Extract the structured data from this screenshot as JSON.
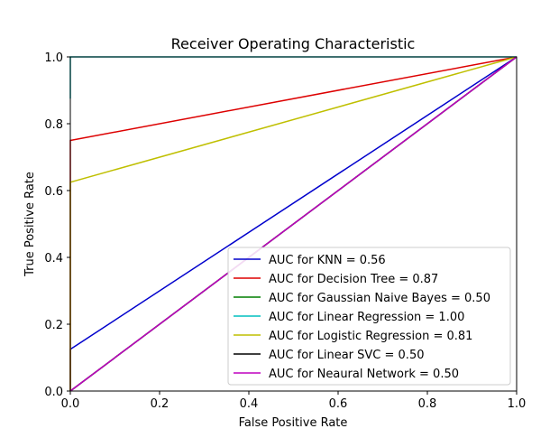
{
  "chart_data": {
    "type": "line",
    "title": "Receiver Operating Characteristic",
    "xlabel": "False Positive Rate",
    "ylabel": "True Positive Rate",
    "xlim": [
      0,
      1
    ],
    "ylim": [
      0,
      1
    ],
    "xticks": [
      "0.0",
      "0.2",
      "0.4",
      "0.6",
      "0.8",
      "1.0"
    ],
    "yticks": [
      "0.0",
      "0.2",
      "0.4",
      "0.6",
      "0.8",
      "1.0"
    ],
    "grid": false,
    "legend_position": "lower-right",
    "series": [
      {
        "name": "AUC for KNN = 0.56",
        "color": "#0000cc",
        "points": [
          [
            0,
            0
          ],
          [
            0,
            0.125
          ],
          [
            1,
            1
          ]
        ]
      },
      {
        "name": "AUC for Decision Tree = 0.87",
        "color": "#dd0000",
        "points": [
          [
            0,
            0
          ],
          [
            0,
            0.75
          ],
          [
            1,
            1
          ]
        ]
      },
      {
        "name": "AUC for Gaussian Naive Bayes = 0.50",
        "color": "#007f00",
        "points": [
          [
            0,
            0
          ],
          [
            1,
            1
          ]
        ]
      },
      {
        "name": "AUC for Linear Regression = 1.00",
        "color": "#00bfbf",
        "points": [
          [
            0,
            0.875
          ],
          [
            0,
            1
          ],
          [
            1,
            1
          ]
        ]
      },
      {
        "name": "AUC for Logistic Regression = 0.81",
        "color": "#bfbf00",
        "points": [
          [
            0,
            0
          ],
          [
            0,
            0.625
          ],
          [
            1,
            1
          ]
        ]
      },
      {
        "name": "AUC for Linear SVC = 0.50",
        "color": "#000000",
        "points": [
          [
            0,
            0
          ],
          [
            1,
            1
          ]
        ]
      },
      {
        "name": "AUC for Neaural Network = 0.50",
        "color": "#bf00bf",
        "points": [
          [
            0,
            0
          ],
          [
            1,
            1
          ]
        ]
      }
    ]
  }
}
